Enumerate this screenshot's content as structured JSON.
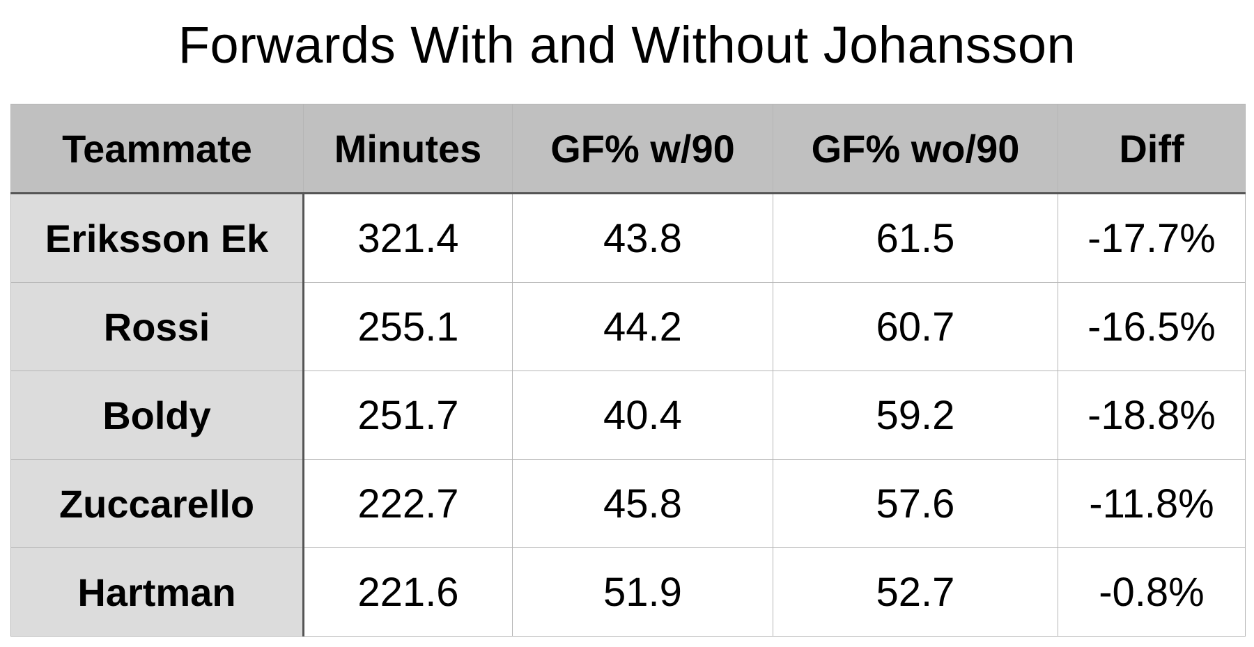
{
  "chart_data": {
    "type": "table",
    "title": "Forwards With and Without Johansson",
    "columns": [
      "Teammate",
      "Minutes",
      "GF% w/90",
      "GF% wo/90",
      "Diff"
    ],
    "rows": [
      [
        "Eriksson Ek",
        "321.4",
        "43.8",
        "61.5",
        "-17.7%"
      ],
      [
        "Rossi",
        "255.1",
        "44.2",
        "60.7",
        "-16.5%"
      ],
      [
        "Boldy",
        "251.7",
        "40.4",
        "59.2",
        "-18.8%"
      ],
      [
        "Zuccarello",
        "222.7",
        "45.8",
        "57.6",
        "-11.8%"
      ],
      [
        "Hartman",
        "221.6",
        "51.9",
        "52.7",
        "-0.8%"
      ]
    ]
  }
}
